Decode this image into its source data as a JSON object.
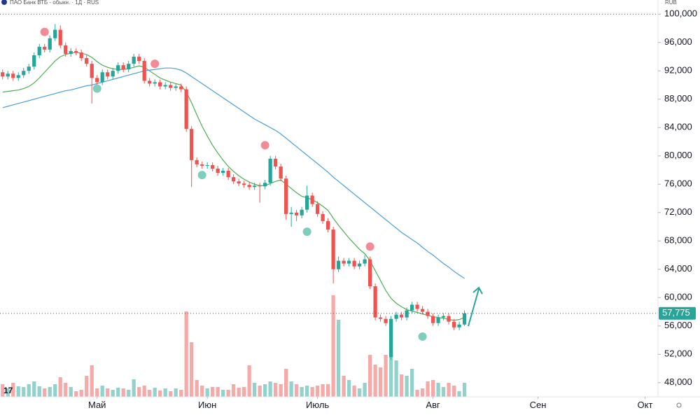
{
  "chart_data": {
    "type": "candlestick",
    "title": "ПАО Банк ВТБ - обыкн. · 1Д · RUS",
    "currency": "RUB",
    "up_color": "#26a69a",
    "down_color": "#ef5350",
    "open": [
      91800,
      91200,
      91600,
      91000,
      91400,
      92000,
      92600,
      94200,
      95400,
      95000,
      96600,
      97800,
      95600,
      94400,
      94800,
      94600,
      93800,
      93000,
      91000,
      90400,
      91800,
      91200,
      92000,
      92800,
      92200,
      93000,
      94000,
      93400,
      90600,
      90200,
      90400,
      89800,
      90000,
      89600,
      89800,
      89400,
      83800,
      79400,
      78800,
      78600,
      78700,
      78200,
      77600,
      77900,
      77000,
      76400,
      76100,
      75900,
      75600,
      75800,
      75700,
      76200,
      79600,
      78500,
      76800,
      71800,
      72000,
      71600,
      72400,
      74400,
      73200,
      71800,
      70800,
      69600,
      64000,
      65200,
      64800,
      65200,
      64400,
      64800,
      65400,
      61600,
      57200,
      57000,
      51600,
      57000,
      57600,
      57200,
      58200,
      59000,
      58400,
      58000,
      57400,
      56400,
      57200,
      57400,
      56600,
      55800,
      56200
    ],
    "high": [
      92200,
      92000,
      92000,
      91800,
      92400,
      93000,
      94600,
      95800,
      95800,
      97000,
      98600,
      98400,
      96000,
      95200,
      95200,
      95000,
      94200,
      93400,
      91400,
      92200,
      92200,
      92400,
      93200,
      93200,
      93400,
      94400,
      94400,
      93800,
      91000,
      90800,
      90800,
      90400,
      90400,
      90200,
      90200,
      89800,
      84200,
      79800,
      79200,
      79100,
      79100,
      78600,
      78300,
      78300,
      77400,
      76800,
      76500,
      76300,
      76200,
      76200,
      76600,
      80000,
      80000,
      78900,
      77200,
      72800,
      72400,
      72800,
      75800,
      74800,
      73600,
      72200,
      71200,
      70000,
      65800,
      65600,
      65600,
      65600,
      65200,
      66000,
      65800,
      62000,
      57600,
      57400,
      57400,
      58000,
      58000,
      58600,
      59400,
      59400,
      58800,
      58400,
      57800,
      57600,
      57800,
      57800,
      57000,
      56600,
      58200
    ],
    "low": [
      90800,
      90800,
      90600,
      90600,
      91000,
      91600,
      92200,
      93800,
      94600,
      94600,
      96200,
      95200,
      94000,
      94000,
      94200,
      93400,
      92600,
      87400,
      90000,
      90000,
      90800,
      90800,
      91600,
      91800,
      91800,
      92600,
      93000,
      90200,
      89800,
      89800,
      89400,
      89400,
      89200,
      89200,
      89000,
      83400,
      75600,
      78400,
      78200,
      78200,
      77800,
      77200,
      77200,
      76600,
      76000,
      75700,
      75500,
      75200,
      75200,
      73400,
      75300,
      75800,
      78100,
      76400,
      71000,
      70000,
      70800,
      71200,
      72000,
      72800,
      71400,
      70400,
      69200,
      62000,
      63600,
      64400,
      64400,
      64000,
      64000,
      64400,
      61200,
      56800,
      56600,
      56000,
      51200,
      56600,
      56800,
      56800,
      57800,
      58000,
      57600,
      57000,
      56000,
      56000,
      56800,
      56200,
      55400,
      55400,
      56000
    ],
    "close": [
      91200,
      91600,
      91000,
      91400,
      92000,
      92600,
      94200,
      95400,
      95000,
      96600,
      97800,
      95600,
      94400,
      94800,
      94600,
      93800,
      93000,
      91000,
      90400,
      91800,
      91200,
      92000,
      92800,
      92200,
      93000,
      94000,
      93400,
      90600,
      90200,
      90400,
      89800,
      90000,
      89600,
      89800,
      89400,
      83800,
      79400,
      78800,
      78600,
      78700,
      78200,
      77600,
      77900,
      77000,
      76400,
      76100,
      75900,
      75600,
      75800,
      75700,
      76200,
      79600,
      78500,
      76800,
      71800,
      72000,
      71600,
      72400,
      74400,
      73200,
      71800,
      70800,
      69600,
      64000,
      65200,
      64800,
      65200,
      64400,
      64800,
      65400,
      61600,
      57200,
      57000,
      56400,
      57000,
      57600,
      57200,
      58200,
      59000,
      58400,
      58000,
      57400,
      56400,
      57200,
      57400,
      56600,
      55800,
      56200,
      57775
    ],
    "volume": [
      18,
      12,
      20,
      15,
      14,
      18,
      22,
      15,
      12,
      14,
      18,
      28,
      20,
      14,
      8,
      10,
      30,
      45,
      12,
      16,
      12,
      10,
      13,
      12,
      10,
      25,
      14,
      16,
      10,
      13,
      9,
      12,
      8,
      12,
      10,
      122,
      78,
      24,
      16,
      12,
      14,
      14,
      10,
      10,
      18,
      13,
      14,
      45,
      20,
      16,
      18,
      22,
      20,
      18,
      40,
      22,
      18,
      14,
      16,
      14,
      16,
      18,
      18,
      145,
      110,
      30,
      24,
      16,
      12,
      20,
      60,
      46,
      42,
      60,
      108,
      52,
      32,
      30,
      40,
      10,
      12,
      22,
      24,
      20,
      14,
      20,
      16,
      8,
      20
    ],
    "vlim": [
      0,
      150
    ],
    "series": [
      {
        "color": "#4caf50",
        "values": [
          89000,
          89100,
          89200,
          89300,
          89500,
          89800,
          90300,
          91000,
          91800,
          92600,
          93400,
          94000,
          94300,
          94500,
          94600,
          94500,
          94300,
          93900,
          93300,
          92800,
          92500,
          92300,
          92200,
          92200,
          92300,
          92500,
          92700,
          92500,
          92000,
          91500,
          91000,
          90700,
          90400,
          90200,
          90000,
          89000,
          87500,
          85800,
          84200,
          82800,
          81500,
          80400,
          79400,
          78500,
          77800,
          77200,
          76700,
          76300,
          76000,
          75800,
          75800,
          76100,
          76400,
          76600,
          76000,
          75400,
          74800,
          74300,
          74100,
          73800,
          73400,
          72900,
          72300,
          71200,
          70200,
          69300,
          68400,
          67600,
          66800,
          66200,
          65200,
          63800,
          62400,
          61000,
          59900,
          59200,
          58700,
          58300,
          58100,
          57900,
          57700,
          57500,
          57300,
          57200,
          57100,
          56900,
          56800,
          56900,
          57200
        ]
      },
      {
        "color": "#4a9fd8",
        "values": [
          86800,
          87000,
          87200,
          87400,
          87600,
          87800,
          88000,
          88200,
          88400,
          88600,
          88800,
          89000,
          89200,
          89300,
          89500,
          89700,
          89900,
          90000,
          90200,
          90400,
          90600,
          90800,
          91000,
          91200,
          91400,
          91600,
          91800,
          92000,
          92100,
          92200,
          92300,
          92400,
          92400,
          92300,
          92100,
          91700,
          91200,
          90700,
          90200,
          89700,
          89200,
          88700,
          88200,
          87700,
          87200,
          86700,
          86200,
          85700,
          85200,
          84800,
          84400,
          84000,
          83600,
          83100,
          82500,
          81900,
          81300,
          80700,
          80100,
          79500,
          78900,
          78300,
          77700,
          77000,
          76400,
          75800,
          75200,
          74600,
          74000,
          73400,
          72800,
          72200,
          71600,
          71000,
          70400,
          69800,
          69200,
          68700,
          68200,
          67700,
          67100,
          66500,
          66000,
          65400,
          64800,
          64300,
          63700,
          63200,
          62700
        ]
      }
    ],
    "signals": [
      {
        "index": 8,
        "value": 97500,
        "color": "#f28b96"
      },
      {
        "index": 29,
        "value": 93000,
        "color": "#f28b96"
      },
      {
        "index": 50,
        "value": 81500,
        "color": "#f28b96"
      },
      {
        "index": 70,
        "value": 67200,
        "color": "#f28b96"
      },
      {
        "index": 18,
        "value": 89500,
        "color": "#7fcdbd"
      },
      {
        "index": 38,
        "value": 77300,
        "color": "#7fcdbd"
      },
      {
        "index": 58,
        "value": 69300,
        "color": "#7fcdbd"
      },
      {
        "index": 80,
        "value": 54500,
        "color": "#7fcdbd"
      }
    ],
    "last_price": {
      "value": 57775,
      "label": "57,775"
    },
    "xlim": [
      -0.5,
      125
    ],
    "xticks": [
      {
        "value": 18,
        "label": "Май"
      },
      {
        "value": 39,
        "label": "Июн"
      },
      {
        "value": 60,
        "label": "Июль"
      },
      {
        "value": 82,
        "label": "Авг"
      },
      {
        "value": 102,
        "label": "Сен"
      },
      {
        "value": 122.4,
        "label": "Окт"
      }
    ],
    "ylim": [
      46000,
      102000
    ],
    "yticks": [
      {
        "value": 48000,
        "label": "48,000"
      },
      {
        "value": 52000,
        "label": "52,000"
      },
      {
        "value": 56000,
        "label": "56,000"
      },
      {
        "value": 60000,
        "label": "60,000"
      },
      {
        "value": 64000,
        "label": "64,000"
      },
      {
        "value": 68000,
        "label": "68,000"
      },
      {
        "value": 72000,
        "label": "72,000"
      },
      {
        "value": 76000,
        "label": "76,000"
      },
      {
        "value": 80000,
        "label": "80,000"
      },
      {
        "value": 84000,
        "label": "84,000"
      },
      {
        "value": 88000,
        "label": "88,000"
      },
      {
        "value": 92000,
        "label": "92,000"
      },
      {
        "value": 96000,
        "label": "96,000"
      },
      {
        "value": 100000,
        "label": "100,000"
      }
    ]
  }
}
